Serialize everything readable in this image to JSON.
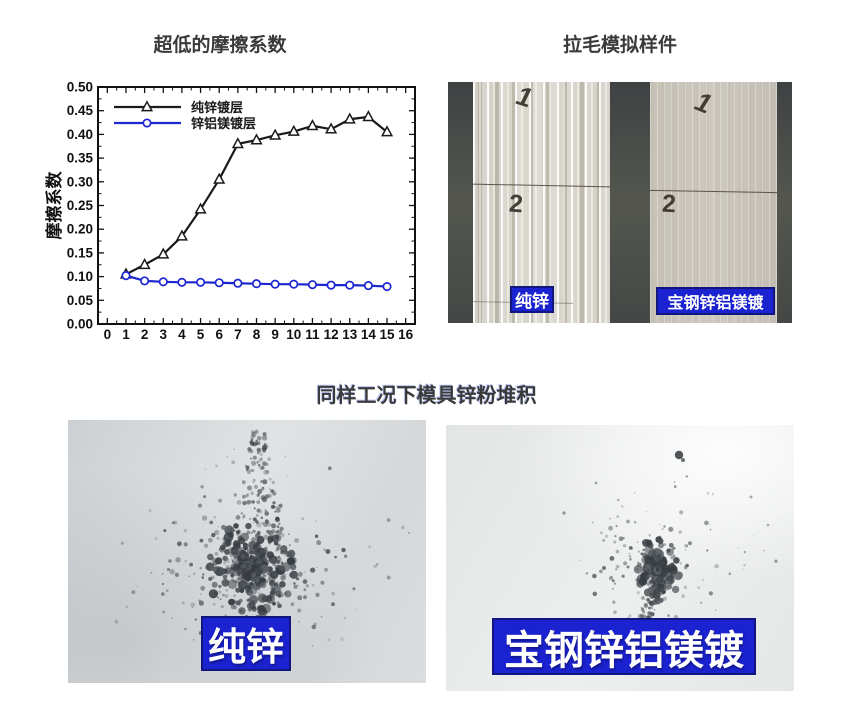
{
  "chart_data": {
    "type": "line",
    "title": "超低的摩擦系数",
    "xlabel": "",
    "ylabel": "摩擦系数",
    "xlim": [
      -0.5,
      16.5
    ],
    "ylim": [
      0,
      0.5
    ],
    "x_tick_labels": [
      "0",
      "1",
      "2",
      "3",
      "4",
      "5",
      "6",
      "7",
      "8",
      "9",
      "10",
      "11",
      "12",
      "13",
      "14",
      "15",
      "16"
    ],
    "y_tick_labels": [
      "0.00",
      "0.05",
      "0.10",
      "0.15",
      "0.20",
      "0.25",
      "0.30",
      "0.35",
      "0.40",
      "0.45",
      "0.50"
    ],
    "grid": false,
    "legend_position": "top-left-inside",
    "x": [
      1,
      2,
      3,
      4,
      5,
      6,
      7,
      8,
      9,
      10,
      11,
      12,
      13,
      14,
      15
    ],
    "series": [
      {
        "name": "纯锌镀层",
        "marker": "triangle",
        "color": "#1a1a1a",
        "values": [
          0.105,
          0.125,
          0.147,
          0.185,
          0.242,
          0.305,
          0.38,
          0.388,
          0.398,
          0.406,
          0.418,
          0.411,
          0.432,
          0.437,
          0.405
        ]
      },
      {
        "name": "锌铝镁镀层",
        "marker": "circle",
        "color": "#1c27d2",
        "values": [
          0.102,
          0.091,
          0.089,
          0.088,
          0.088,
          0.087,
          0.086,
          0.085,
          0.084,
          0.084,
          0.083,
          0.082,
          0.082,
          0.081,
          0.079
        ]
      }
    ]
  },
  "sample_panel": {
    "title": "拉毛模拟样件",
    "strip_left_marks": [
      "1",
      "2"
    ],
    "strip_right_marks": [
      "1",
      "2"
    ],
    "label_left": "纯锌",
    "label_right": "宝钢锌铝镁镀"
  },
  "powder_section": {
    "title": "同样工况下模具锌粉堆积",
    "label_left": "纯锌",
    "label_right": "宝钢锌铝镁镀"
  },
  "colors": {
    "label_bg": "#1b22cf",
    "label_border": "#11167e",
    "label_text": "#ffffff",
    "title_text": "#3a3a3a",
    "series_black": "#1a1a1a",
    "series_blue": "#1c27d2"
  }
}
